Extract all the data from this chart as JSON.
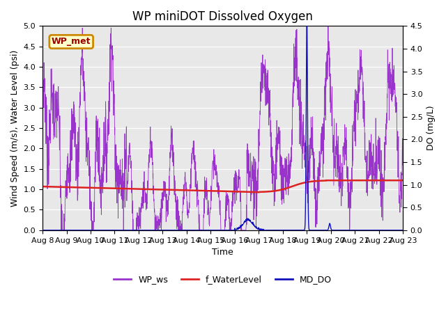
{
  "title": "WP miniDOT Dissolved Oxygen",
  "xlabel": "Time",
  "ylabel_left": "Wind Speed (m/s), Water Level (psi)",
  "ylabel_right": "DO (mg/L)",
  "ylim_left": [
    0.0,
    5.0
  ],
  "ylim_right": [
    0.0,
    4.5
  ],
  "yticks_left": [
    0.0,
    0.5,
    1.0,
    1.5,
    2.0,
    2.5,
    3.0,
    3.5,
    4.0,
    4.5,
    5.0
  ],
  "yticks_right": [
    0.0,
    0.5,
    1.0,
    1.5,
    2.0,
    2.5,
    3.0,
    3.5,
    4.0,
    4.5
  ],
  "xtick_labels": [
    "Aug 8",
    "Aug 9",
    "Aug 10",
    "Aug 11",
    "Aug 12",
    "Aug 13",
    "Aug 14",
    "Aug 15",
    "Aug 16",
    "Aug 17",
    "Aug 18",
    "Aug 19",
    "Aug 20",
    "Aug 21",
    "Aug 22",
    "Aug 23"
  ],
  "wp_ws_color": "#9933cc",
  "f_waterlevel_color": "#dd2222",
  "md_do_color": "#1111bb",
  "background_color": "#e8e8e8",
  "legend_label_wp_met": "WP_met",
  "legend_box_edge": "#cc8800",
  "legend_box_bg": "#ffffcc",
  "grid_color": "#ffffff",
  "title_fontsize": 12,
  "axis_fontsize": 9,
  "tick_fontsize": 8,
  "legend_fontsize": 9
}
